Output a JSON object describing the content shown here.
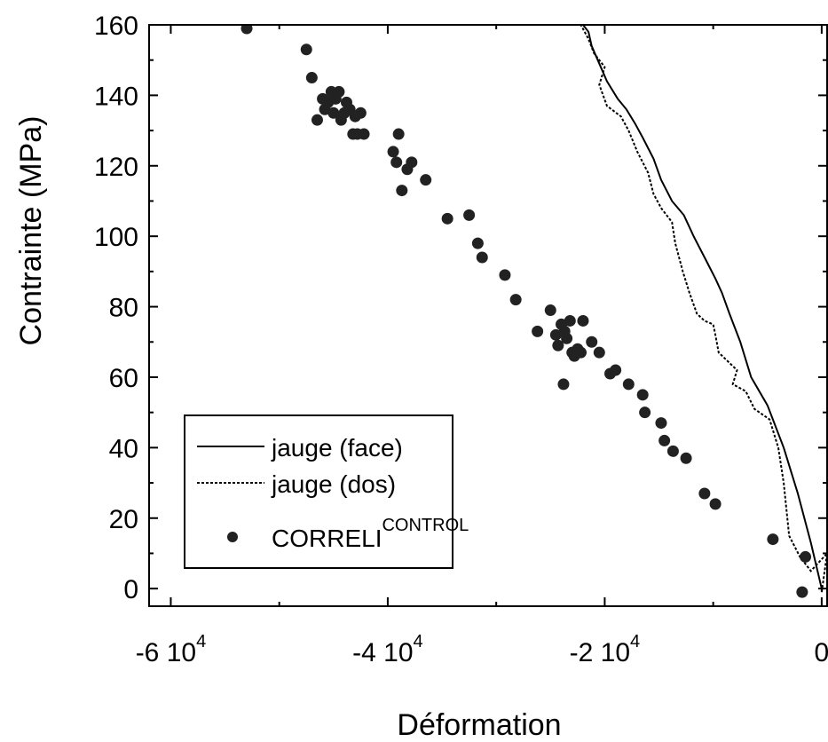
{
  "chart_data": {
    "type": "scatter",
    "xlabel": "Déformation",
    "ylabel": "Contrainte (MPa)",
    "xlim": [
      -0.00062,
      5e-06
    ],
    "ylim": [
      -5,
      160
    ],
    "grid": false,
    "legend_position": "bottom-left",
    "x_ticks": [
      {
        "value": -0.0006,
        "base": "-6 10",
        "exp": "4"
      },
      {
        "value": -0.0004,
        "base": "-4 10",
        "exp": "4"
      },
      {
        "value": -0.0002,
        "base": "-2 10",
        "exp": "4"
      },
      {
        "value": 0,
        "base": "0",
        "exp": ""
      }
    ],
    "y_ticks": [
      0,
      20,
      40,
      60,
      80,
      100,
      120,
      140,
      160
    ],
    "series": [
      {
        "name": "jauge (face)",
        "style": "solid",
        "x": [
          -0.0,
          -0.0,
          -1e-05,
          -2.2e-05,
          -3.5e-05,
          -5e-05,
          -6.5e-05,
          -7.5e-05,
          -8.5e-05,
          -9.2e-05,
          -9.8e-05,
          -0.000108,
          -0.000118,
          -0.000127,
          -0.000138,
          -0.000148,
          -0.000155,
          -0.000165,
          -0.000172,
          -0.00018,
          -0.000188,
          -0.000198,
          -0.000205,
          -0.000212,
          -0.000215,
          -0.00022
        ],
        "y": [
          -1,
          0,
          13,
          27,
          40,
          52,
          60,
          70,
          78,
          84,
          88,
          94,
          100,
          106,
          110,
          116,
          122,
          128,
          132,
          136,
          139,
          144,
          149,
          154,
          158,
          160
        ]
      },
      {
        "name": "jauge (dos)",
        "style": "dotted",
        "x": [
          0.0,
          5e-06,
          -1e-05,
          -2e-05,
          -3e-05,
          -3.5e-05,
          -4e-05,
          -4.8e-05,
          -6.2e-05,
          -7e-05,
          -8.2e-05,
          -7.8e-05,
          -9.5e-05,
          -9.8e-05,
          -0.0001,
          -0.000108,
          -0.000115,
          -0.000122,
          -0.000128,
          -0.000135,
          -0.000138,
          -0.000148,
          -0.000155,
          -0.00016,
          -0.00017,
          -0.000178,
          -0.000185,
          -0.000198,
          -0.000205,
          -0.0002,
          -0.00021,
          -0.000215,
          -0.000222
        ],
        "y": [
          -1,
          10,
          5,
          9,
          15,
          30,
          40,
          48,
          51,
          56,
          58,
          62,
          67,
          72,
          75,
          76,
          78,
          84,
          90,
          98,
          104,
          108,
          112,
          118,
          124,
          130,
          134,
          137,
          143,
          148,
          152,
          156,
          160
        ]
      },
      {
        "name": "CORRELI",
        "name_superscript": "CONTROL",
        "style": "markers",
        "x": [
          -0.00053,
          -0.000475,
          -0.00047,
          -0.000465,
          -0.00046,
          -0.000458,
          -0.000455,
          -0.000452,
          -0.00045,
          -0.000448,
          -0.000445,
          -0.000443,
          -0.00044,
          -0.000438,
          -0.000435,
          -0.000432,
          -0.00043,
          -0.000428,
          -0.000425,
          -0.000422,
          -0.000395,
          -0.000392,
          -0.00039,
          -0.000387,
          -0.000382,
          -0.000378,
          -0.000365,
          -0.000345,
          -0.000325,
          -0.000317,
          -0.000313,
          -0.000292,
          -0.000282,
          -0.000262,
          -0.00025,
          -0.000245,
          -0.000243,
          -0.00024,
          -0.000238,
          -0.000237,
          -0.000235,
          -0.000232,
          -0.00023,
          -0.000228,
          -0.000225,
          -0.000222,
          -0.00022,
          -0.000212,
          -0.000205,
          -0.000195,
          -0.00019,
          -0.000178,
          -0.000165,
          -0.000163,
          -0.000148,
          -0.000145,
          -0.000137,
          -0.000125,
          -0.000108,
          -9.8e-05,
          -4.5e-05,
          -1.5e-05,
          -1.8e-05
        ],
        "y": [
          159,
          153,
          145,
          133,
          139,
          136,
          138,
          141,
          135,
          139,
          141,
          133,
          135,
          138,
          136,
          129,
          134,
          129,
          135,
          129,
          124,
          121,
          129,
          113,
          119,
          121,
          116,
          105,
          106,
          98,
          94,
          89,
          82,
          73,
          79,
          72,
          69,
          75,
          58,
          73,
          71,
          76,
          67,
          66,
          68,
          67,
          76,
          70,
          67,
          61,
          62,
          58,
          55,
          50,
          47,
          42,
          39,
          37,
          27,
          24,
          14,
          9,
          -1
        ]
      }
    ]
  }
}
